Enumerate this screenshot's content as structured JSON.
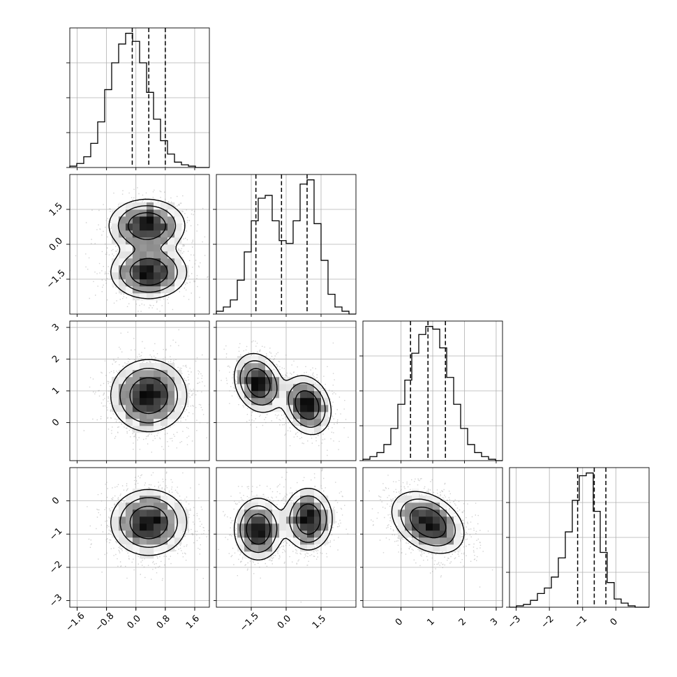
{
  "chart_data": {
    "type": "corner",
    "parameters": [
      {
        "range": [
          -1.8,
          2.0
        ],
        "ticks": [
          -1.6,
          -0.8,
          0.0,
          0.8,
          1.6
        ],
        "tick_labels": [
          "−1.6",
          "−0.8",
          "0.0",
          "0.8",
          "1.6"
        ],
        "quantiles": [
          -0.1,
          0.35,
          0.8
        ]
      },
      {
        "range": [
          -3.0,
          3.0
        ],
        "ticks": [
          -1.5,
          0.0,
          1.5
        ],
        "tick_labels": [
          "−1.5",
          "0.0",
          "1.5"
        ],
        "quantiles": [
          -1.3,
          -0.2,
          0.9
        ]
      },
      {
        "range": [
          -1.2,
          3.2
        ],
        "ticks": [
          0,
          1,
          2,
          3
        ],
        "tick_labels": [
          "0",
          "1",
          "2",
          "3"
        ],
        "quantiles": [
          0.3,
          0.85,
          1.4
        ]
      },
      {
        "range": [
          -3.2,
          1.0
        ],
        "ticks": [
          -3,
          -2,
          -1,
          0
        ],
        "tick_labels": [
          "−3",
          "−2",
          "−1",
          "0"
        ],
        "quantiles": [
          -1.15,
          -0.65,
          -0.3
        ]
      }
    ],
    "histograms": [
      {
        "edges_start": -1.8,
        "bin_width": 0.19,
        "counts": [
          1,
          3,
          8,
          18,
          34,
          58,
          78,
          92,
          100,
          94,
          78,
          56,
          36,
          20,
          10,
          4,
          2,
          1,
          0,
          0
        ]
      },
      {
        "edges_start": -3.0,
        "bin_width": 0.3,
        "counts": [
          2,
          5,
          10,
          24,
          44,
          66,
          82,
          84,
          66,
          52,
          50,
          66,
          92,
          95,
          64,
          38,
          14,
          5,
          2,
          0
        ]
      },
      {
        "edges_start": -1.2,
        "bin_width": 0.22,
        "counts": [
          1,
          3,
          6,
          12,
          24,
          42,
          60,
          80,
          94,
          100,
          98,
          84,
          62,
          42,
          24,
          12,
          6,
          3,
          1,
          0
        ]
      },
      {
        "edges_start": -3.2,
        "bin_width": 0.21,
        "counts": [
          0,
          1,
          2,
          5,
          10,
          14,
          22,
          36,
          55,
          78,
          96,
          98,
          70,
          40,
          18,
          6,
          3,
          1,
          0,
          0
        ]
      }
    ],
    "pairs": [
      {
        "x": 0,
        "y": 1,
        "blobs": [
          {
            "cx": 0.3,
            "cy": 0.8,
            "sx": 0.5,
            "sy": 0.55,
            "rho": 0
          },
          {
            "cx": 0.35,
            "cy": -1.2,
            "sx": 0.5,
            "sy": 0.55,
            "rho": 0
          }
        ]
      },
      {
        "x": 0,
        "y": 2,
        "blobs": [
          {
            "cx": 0.35,
            "cy": 0.85,
            "sx": 0.5,
            "sy": 0.55,
            "rho": 0
          }
        ]
      },
      {
        "x": 1,
        "y": 2,
        "blobs": [
          {
            "cx": -1.2,
            "cy": 1.25,
            "sx": 0.5,
            "sy": 0.45,
            "rho": -0.2
          },
          {
            "cx": 0.9,
            "cy": 0.55,
            "sx": 0.5,
            "sy": 0.45,
            "rho": -0.2
          }
        ]
      },
      {
        "x": 0,
        "y": 3,
        "blobs": [
          {
            "cx": 0.35,
            "cy": -0.65,
            "sx": 0.5,
            "sy": 0.48,
            "rho": 0
          }
        ]
      },
      {
        "x": 1,
        "y": 3,
        "blobs": [
          {
            "cx": -1.2,
            "cy": -0.85,
            "sx": 0.5,
            "sy": 0.45,
            "rho": 0
          },
          {
            "cx": 0.95,
            "cy": -0.55,
            "sx": 0.5,
            "sy": 0.45,
            "rho": 0
          }
        ]
      },
      {
        "x": 2,
        "y": 3,
        "blobs": [
          {
            "cx": 0.85,
            "cy": -0.65,
            "sx": 0.55,
            "sy": 0.45,
            "rho": -0.35
          }
        ]
      }
    ],
    "grid": true,
    "colors": {
      "line": "#000000",
      "grid": "#b0b0b0",
      "points": "#7f7f7f"
    }
  }
}
